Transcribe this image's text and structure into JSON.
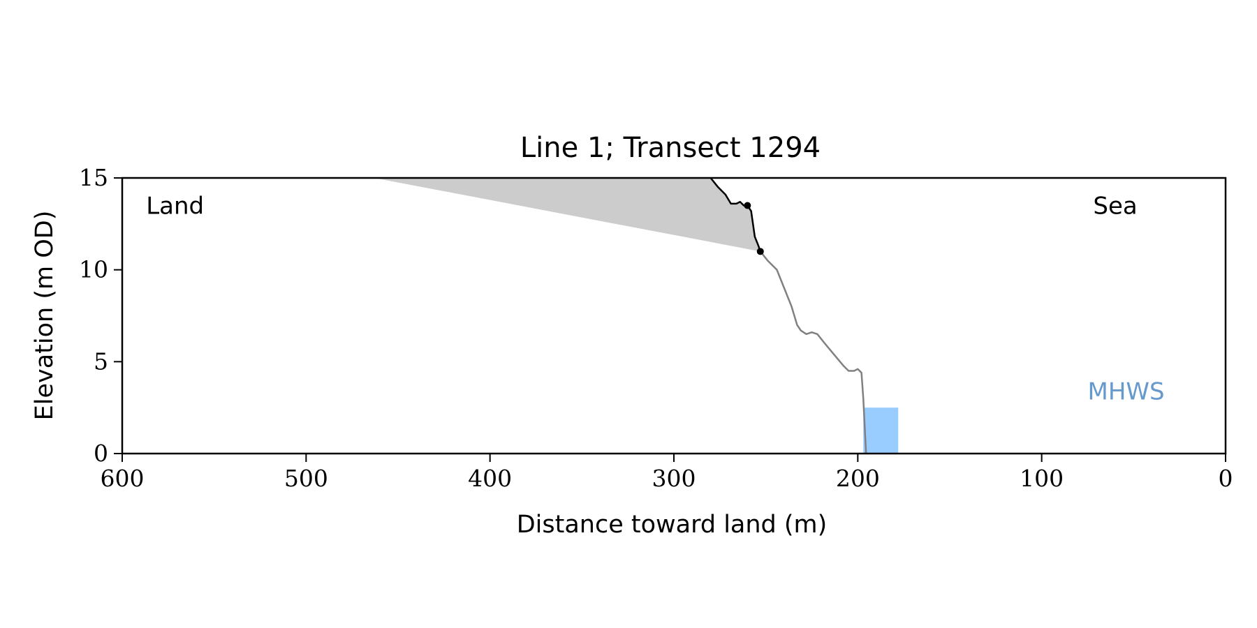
{
  "chart_data": {
    "type": "line",
    "title": "Line 1; Transect 1294",
    "xlabel": "Distance toward land (m)",
    "ylabel": "Elevation (m OD)",
    "xlim": [
      600,
      0
    ],
    "ylim": [
      0,
      15
    ],
    "x_reversed": true,
    "x_ticks": [
      600,
      500,
      400,
      300,
      200,
      100,
      0
    ],
    "y_ticks": [
      0,
      5,
      10,
      15
    ],
    "grid": false,
    "annotations": [
      {
        "text": "Land",
        "x": 587,
        "y": 13.5,
        "color": "#000000"
      },
      {
        "text": "Sea",
        "x": 72,
        "y": 13.5,
        "color": "#000000"
      },
      {
        "text": "MHWS",
        "x": 75,
        "y": 3.4,
        "color": "#6699cc"
      }
    ],
    "series": [
      {
        "role": "profile_lower",
        "color": "#808080",
        "points": [
          [
            253,
            11.0
          ],
          [
            249,
            10.5
          ],
          [
            244,
            10.0
          ],
          [
            240,
            9.0
          ],
          [
            236,
            8.0
          ],
          [
            233,
            7.0
          ],
          [
            231,
            6.7
          ],
          [
            228,
            6.5
          ],
          [
            225,
            6.6
          ],
          [
            222,
            6.5
          ],
          [
            218,
            6.0
          ],
          [
            213,
            5.4
          ],
          [
            208,
            4.8
          ],
          [
            205,
            4.5
          ],
          [
            202,
            4.5
          ],
          [
            200,
            4.6
          ],
          [
            198,
            4.4
          ],
          [
            197,
            3.0
          ],
          [
            196,
            1.0
          ],
          [
            195.5,
            0.0
          ]
        ]
      },
      {
        "role": "profile_upper",
        "color": "#000000",
        "points": [
          [
            280,
            15.0
          ],
          [
            276,
            14.5
          ],
          [
            272,
            14.1
          ],
          [
            269,
            13.6
          ],
          [
            266,
            13.6
          ],
          [
            264,
            13.7
          ],
          [
            262,
            13.5
          ],
          [
            260,
            13.5
          ],
          [
            258,
            13.2
          ],
          [
            257,
            12.5
          ],
          [
            256,
            11.8
          ],
          [
            254,
            11.3
          ],
          [
            253,
            11.0
          ]
        ]
      }
    ],
    "markers": [
      {
        "x": 260,
        "y": 13.5,
        "color": "#000000"
      },
      {
        "x": 253,
        "y": 11.0,
        "color": "#000000"
      }
    ],
    "fill_region": {
      "color": "#cccccc",
      "points": [
        [
          463,
          15.0
        ],
        [
          280,
          15.0
        ],
        [
          276,
          14.5
        ],
        [
          272,
          14.1
        ],
        [
          269,
          13.6
        ],
        [
          266,
          13.6
        ],
        [
          264,
          13.7
        ],
        [
          262,
          13.5
        ],
        [
          260,
          13.5
        ],
        [
          258,
          13.2
        ],
        [
          257,
          12.5
        ],
        [
          256,
          11.8
        ],
        [
          254,
          11.3
        ],
        [
          253,
          11.0
        ]
      ]
    },
    "mhws_bar": {
      "color": "#99ccff",
      "x_from": 197,
      "x_to": 178,
      "y_from": 0,
      "y_to": 2.5
    }
  }
}
